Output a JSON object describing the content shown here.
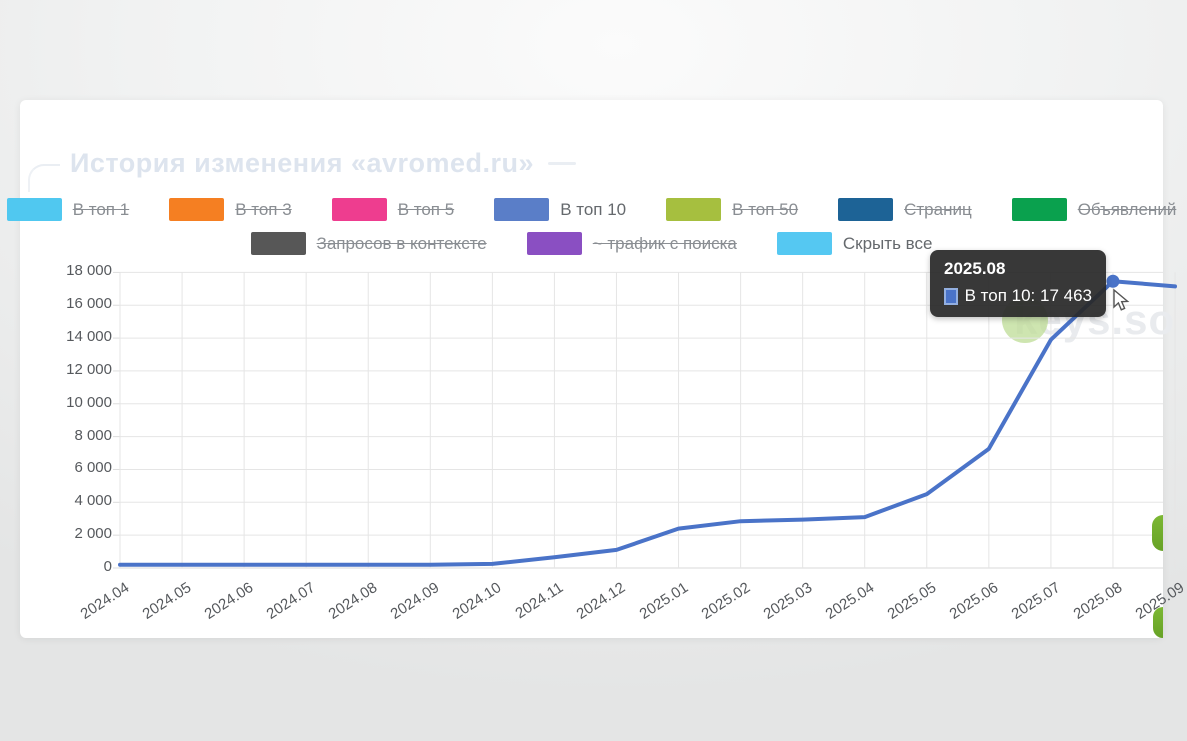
{
  "card": {
    "title": "История изменения «avromed.ru»"
  },
  "watermark": {
    "text": "keys.so"
  },
  "tooltip": {
    "date": "2025.08",
    "label": "В топ 10: 17 463",
    "marker_color": "#4a73c8"
  },
  "legend": {
    "rows": [
      [
        {
          "label": "В топ 1",
          "color": "#50c8f0",
          "active": false
        },
        {
          "label": "В топ 3",
          "color": "#f57f22",
          "active": false
        },
        {
          "label": "В топ 5",
          "color": "#ee3d8f",
          "active": false
        },
        {
          "label": "В топ 10",
          "color": "#5a7ec8",
          "active": true
        },
        {
          "label": "В топ 50",
          "color": "#a6bf3f",
          "active": false
        },
        {
          "label": "Страниц",
          "color": "#1d6396",
          "active": false
        },
        {
          "label": "Объявлений",
          "color": "#0aa14e",
          "active": false
        }
      ],
      [
        {
          "label": "Запросов в контексте",
          "color": "#575757",
          "active": false
        },
        {
          "label": "~ трафик с поиска",
          "color": "#8a4fc2",
          "active": false
        },
        {
          "label": "Скрыть все",
          "color": "#55c8f2",
          "active": true
        }
      ]
    ]
  },
  "chart_data": {
    "type": "line",
    "title": "История изменения «avromed.ru»",
    "x": [
      "2024.04",
      "2024.05",
      "2024.06",
      "2024.07",
      "2024.08",
      "2024.09",
      "2024.10",
      "2024.11",
      "2024.12",
      "2025.01",
      "2025.02",
      "2025.03",
      "2025.04",
      "2025.05",
      "2025.06",
      "2025.07",
      "2025.08",
      "2025.09"
    ],
    "series": [
      {
        "name": "В топ 10",
        "color": "#4a73c8",
        "values": [
          200,
          200,
          200,
          200,
          200,
          200,
          250,
          650,
          1100,
          2400,
          2850,
          2950,
          3100,
          4500,
          7250,
          13900,
          17463,
          17150
        ]
      }
    ],
    "ylim": [
      0,
      18000
    ],
    "ytick_step": 2000,
    "ytick_labels": [
      "0",
      "2 000",
      "4 000",
      "6 000",
      "8 000",
      "10 000",
      "12 000",
      "14 000",
      "16 000",
      "18 000"
    ],
    "grid": true,
    "legend_position": "top",
    "highlight": {
      "x": "2025.08",
      "value": 17463,
      "value_label": "17 463"
    }
  }
}
